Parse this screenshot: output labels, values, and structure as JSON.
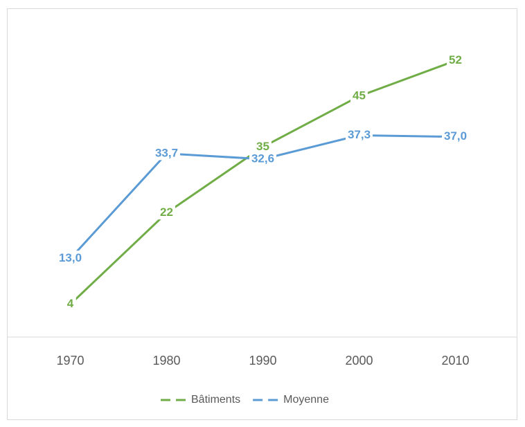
{
  "chart_data": {
    "type": "line",
    "categories": [
      "1970",
      "1980",
      "1990",
      "2000",
      "2010"
    ],
    "series": [
      {
        "name": "Bâtiments",
        "color": "#70ad47",
        "values": [
          4,
          22,
          35,
          45,
          52
        ]
      },
      {
        "name": "Moyenne",
        "color": "#5b9bd5",
        "values": [
          13.0,
          33.7,
          32.6,
          37.3,
          37.0
        ],
        "value_labels": [
          "13,0",
          "33,7",
          "32,6",
          "37,3",
          "37,0"
        ]
      }
    ],
    "ylim": [
      0,
      60
    ],
    "legend": "bottom",
    "grid": false
  }
}
